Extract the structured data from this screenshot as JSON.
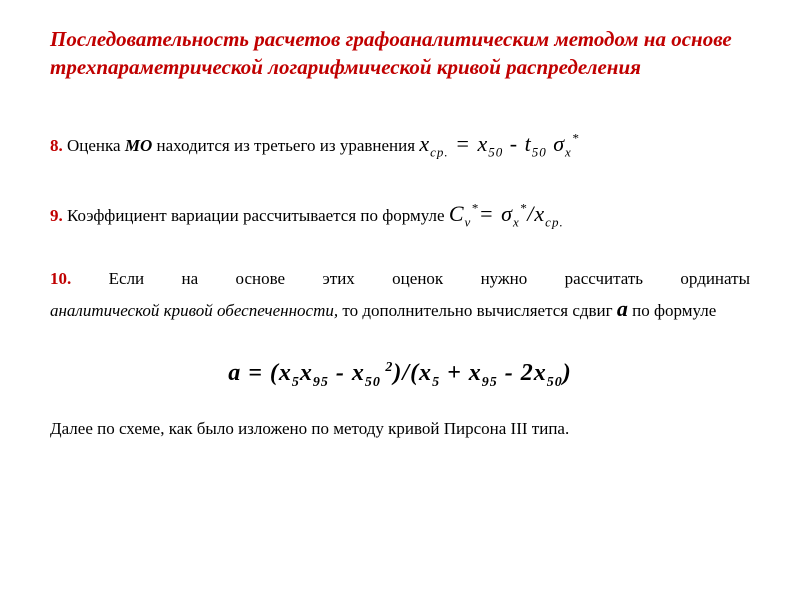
{
  "title": "Последовательность расчетов  графоаналитическим методом  на основе трехпараметрической логарифмической кривой распределения",
  "colors": {
    "accent": "#c00000",
    "text": "#000000",
    "background": "#ffffff"
  },
  "item8": {
    "num": "8.",
    "text_before": " Оценка ",
    "mo": "МО",
    "text_after": " находится  из третьего из уравнения  ",
    "formula": {
      "lhs_var": "x",
      "lhs_sub": "ср.",
      "eq": " = ",
      "rhs1_var": "x",
      "rhs1_sub": "50",
      "minus": " - ",
      "rhs2_var": "t",
      "rhs2_sub": "50",
      "space": " ",
      "rhs3_var": "σ",
      "rhs3_sub": "x",
      "rhs3_sup": "*"
    }
  },
  "item9": {
    "num": "9.",
    "text": " Коэффициент  вариации  рассчитывается по  формуле   ",
    "formula": {
      "lhs_var": "C",
      "lhs_sub": "v",
      "lhs_sup": "*",
      "eq": "= ",
      "rhs1_var": "σ",
      "rhs1_sub": "x",
      "rhs1_sup": "*",
      "slash": "/",
      "rhs2_var": "x",
      "rhs2_sub": "ср."
    }
  },
  "item10": {
    "num": "10.",
    "line1": " Если на основе этих оценок нужно рассчитать ординаты",
    "line2a": "аналитической кривой обеспеченности,",
    "line2b": " то дополнительно вычисляется сдвиг ",
    "a_var": "а",
    "line3": " по формуле",
    "formula": {
      "a": "a = (x",
      "sub1": "5",
      "x2": "x",
      "sub2": "95",
      "minus1": "  -  x",
      "sub3": "50",
      "sup1": " 2",
      "close_div": ")/(x",
      "sub4": "5",
      "plus": " + x",
      "sub5": "95",
      "minus2": " - 2x",
      "sub6": "50",
      "end": ")"
    }
  },
  "final_text": "Далее по схеме, как было изложено по методу кривой Пирсона III типа."
}
